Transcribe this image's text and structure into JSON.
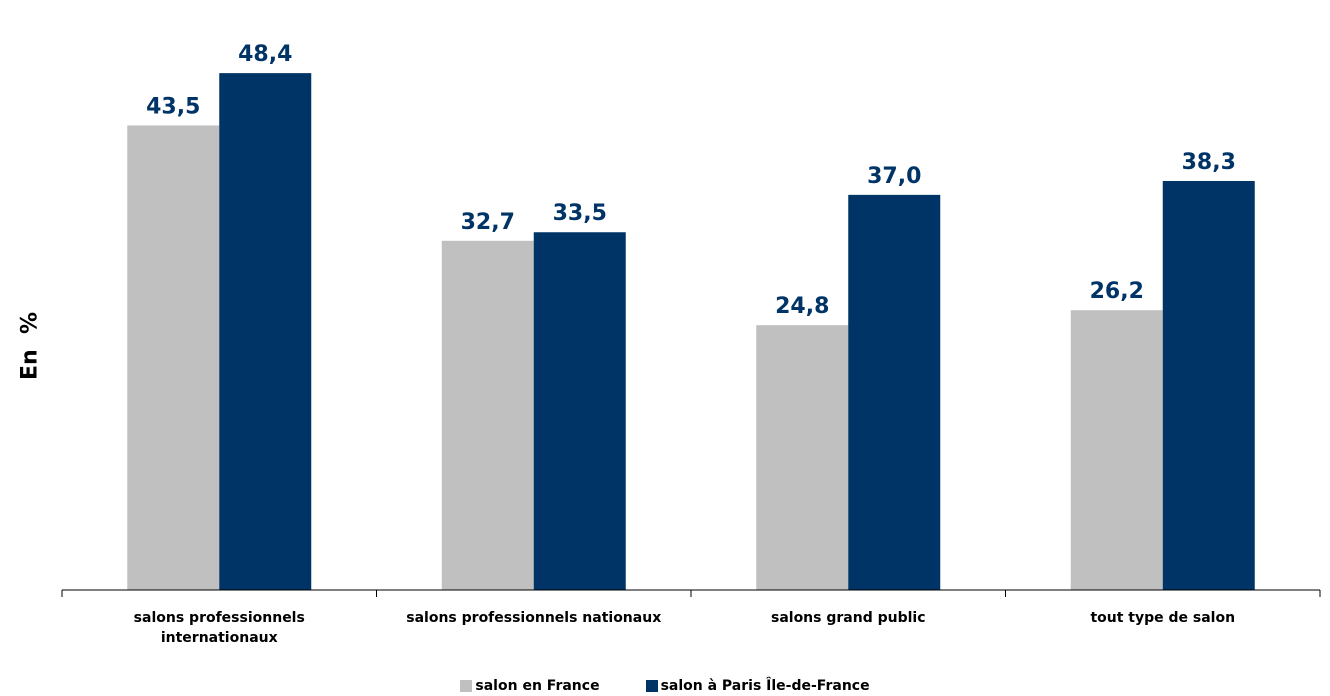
{
  "chart_data": {
    "type": "bar",
    "categories": [
      "salons professionnels internationaux",
      "salons professionnels nationaux",
      "salons grand public",
      "tout type de salon"
    ],
    "category_lines": [
      [
        "salons professionnels",
        "internationaux"
      ],
      [
        "salons professionnels nationaux"
      ],
      [
        "salons grand public"
      ],
      [
        "tout type de salon"
      ]
    ],
    "series": [
      {
        "name": "salon en France",
        "values": [
          43.5,
          32.7,
          24.8,
          26.2
        ],
        "labels": [
          "43,5",
          "32,7",
          "24,8",
          "26,2"
        ],
        "color": "#c0c0c0"
      },
      {
        "name": "salon à Paris Île-de-France",
        "values": [
          48.4,
          33.5,
          37.0,
          38.3
        ],
        "labels": [
          "48,4",
          "33,5",
          "37,0",
          "38,3"
        ],
        "color": "#003366"
      }
    ],
    "ylabel": "En  %",
    "ylim": [
      0,
      53.0
    ],
    "grid": false,
    "legend_position": "bottom",
    "label_color": "#003366"
  }
}
